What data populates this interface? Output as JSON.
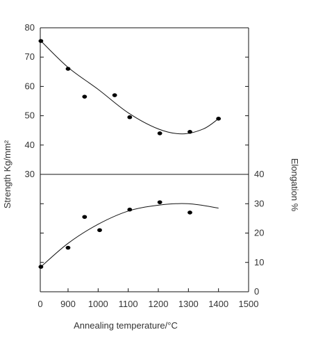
{
  "chart_data": [
    {
      "type": "scatter",
      "panel": "top",
      "y_axis_side": "left",
      "xlim": [
        0,
        1500
      ],
      "ylim": [
        30,
        80
      ],
      "x_ticks": [
        "0",
        "900",
        "1000",
        "1100",
        "1200",
        "1300",
        "1400",
        "1500"
      ],
      "x_tick_values": [
        0,
        900,
        1000,
        1100,
        1200,
        1300,
        1400,
        1500
      ],
      "y_ticks": [
        "30",
        "40",
        "50",
        "60",
        "70",
        "80"
      ],
      "y_tick_values": [
        30,
        40,
        50,
        60,
        70,
        80
      ],
      "ylabel": "Strength   Kg/mm²",
      "points": [
        {
          "x": 20,
          "y": 75.5
        },
        {
          "x": 900,
          "y": 66
        },
        {
          "x": 955,
          "y": 56.5
        },
        {
          "x": 1055,
          "y": 57
        },
        {
          "x": 1105,
          "y": 49.5
        },
        {
          "x": 1205,
          "y": 44
        },
        {
          "x": 1305,
          "y": 44.5
        },
        {
          "x": 1400,
          "y": 49
        }
      ],
      "trend_curve": [
        {
          "x": 20,
          "y": 75.5
        },
        {
          "x": 900,
          "y": 66.5
        },
        {
          "x": 1000,
          "y": 59
        },
        {
          "x": 1100,
          "y": 51
        },
        {
          "x": 1200,
          "y": 45.5
        },
        {
          "x": 1280,
          "y": 43.8
        },
        {
          "x": 1350,
          "y": 45.5
        },
        {
          "x": 1400,
          "y": 49
        }
      ]
    },
    {
      "type": "scatter",
      "panel": "bottom",
      "y_axis_side": "right",
      "xlim": [
        0,
        1500
      ],
      "ylim": [
        0,
        40
      ],
      "x_ticks": [
        "0",
        "900",
        "1000",
        "1100",
        "1200",
        "1300",
        "1400",
        "1500"
      ],
      "x_tick_values": [
        0,
        900,
        1000,
        1100,
        1200,
        1300,
        1400,
        1500
      ],
      "y_ticks": [
        "0",
        "10",
        "20",
        "30",
        "40"
      ],
      "y_tick_values": [
        0,
        10,
        20,
        30,
        40
      ],
      "ylabel": "Elongation %",
      "xlabel": "Annealing temperature/°C",
      "points": [
        {
          "x": 20,
          "y": 8.5
        },
        {
          "x": 900,
          "y": 15
        },
        {
          "x": 955,
          "y": 25.5
        },
        {
          "x": 1005,
          "y": 21
        },
        {
          "x": 1105,
          "y": 28
        },
        {
          "x": 1205,
          "y": 30.5
        },
        {
          "x": 1305,
          "y": 27
        }
      ],
      "trend_curve": [
        {
          "x": 20,
          "y": 8.5
        },
        {
          "x": 900,
          "y": 16.5
        },
        {
          "x": 1000,
          "y": 23
        },
        {
          "x": 1100,
          "y": 27.5
        },
        {
          "x": 1200,
          "y": 29.5
        },
        {
          "x": 1300,
          "y": 30
        },
        {
          "x": 1400,
          "y": 28.5
        }
      ]
    }
  ]
}
